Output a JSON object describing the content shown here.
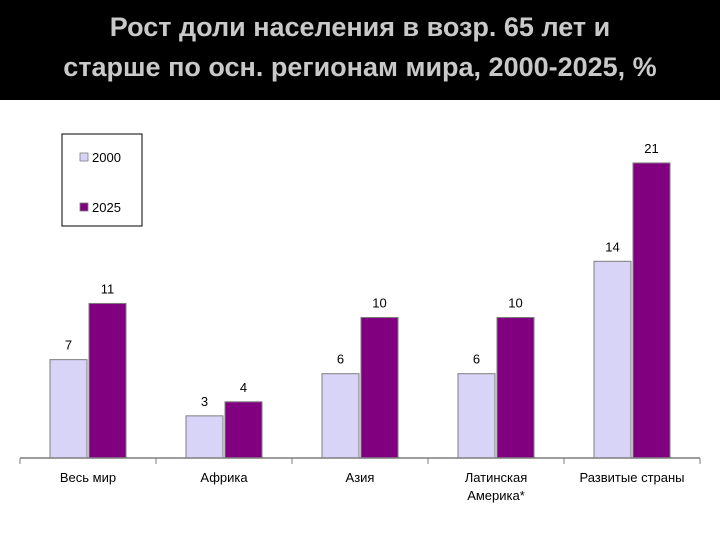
{
  "title": {
    "line1": "Рост доли населения в возр. 65 лет и",
    "line2": "старше по осн. регионам мира, 2000-2025, %"
  },
  "chart_data": {
    "type": "bar",
    "categories": [
      [
        "Весь мир"
      ],
      [
        "Африка"
      ],
      [
        "Азия"
      ],
      [
        "Латинская",
        "Америка*"
      ],
      [
        "Развитые страны"
      ]
    ],
    "series": [
      {
        "name": "2000",
        "values": [
          7,
          3,
          6,
          6,
          14
        ],
        "color": "#d8d4f8"
      },
      {
        "name": "2025",
        "values": [
          11,
          4,
          10,
          10,
          21
        ],
        "color": "#800080"
      }
    ],
    "ylim": [
      0,
      23
    ],
    "grid": false,
    "legend": "top-left"
  }
}
